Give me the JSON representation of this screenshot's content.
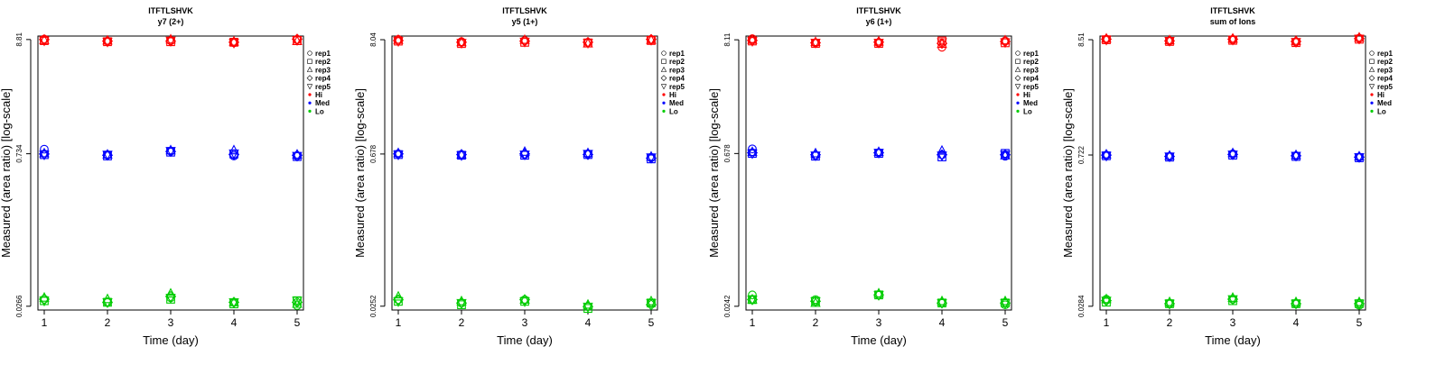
{
  "chart_data": [
    {
      "type": "scatter",
      "title": "ITFTLSHVK",
      "subtitle": "y7 (2+)",
      "xlabel": "Time (day)",
      "ylabel": "Measured (area ratio) [log-scale]",
      "x_ticks": [
        "1",
        "2",
        "3",
        "4",
        "5"
      ],
      "y_ticks": [
        "0.0266",
        "0.734",
        "8.81"
      ],
      "y_scale": "log",
      "xlim": [
        0.9,
        5.1
      ],
      "ylim": [
        0.0245,
        9.5
      ],
      "legend": [
        "rep1",
        "rep2",
        "rep3",
        "rep4",
        "rep5",
        "Hi",
        "Med",
        "Lo"
      ],
      "legend_position": "right",
      "series": [
        {
          "name": "Hi",
          "color": "#ff0000",
          "points": [
            {
              "x": 1,
              "y": [
                8.9,
                8.6,
                8.7,
                8.8,
                8.6
              ]
            },
            {
              "x": 2,
              "y": [
                8.5,
                8.4,
                8.6,
                8.5,
                8.4
              ]
            },
            {
              "x": 3,
              "y": [
                8.6,
                8.4,
                8.8,
                8.5,
                8.6
              ]
            },
            {
              "x": 4,
              "y": [
                8.2,
                8.3,
                8.4,
                8.3,
                8.2
              ]
            },
            {
              "x": 5,
              "y": [
                8.8,
                8.6,
                8.5,
                8.9,
                8.7
              ]
            }
          ]
        },
        {
          "name": "Med",
          "color": "#0000ff",
          "points": [
            {
              "x": 1,
              "y": [
                0.81,
                0.72,
                0.74,
                0.73,
                0.72
              ]
            },
            {
              "x": 2,
              "y": [
                0.72,
                0.7,
                0.72,
                0.71,
                0.72
              ]
            },
            {
              "x": 3,
              "y": [
                0.78,
                0.76,
                0.79,
                0.77,
                0.78
              ]
            },
            {
              "x": 4,
              "y": [
                0.7,
                0.73,
                0.79,
                0.72,
                0.74
              ]
            },
            {
              "x": 5,
              "y": [
                0.7,
                0.69,
                0.72,
                0.71,
                0.7
              ]
            }
          ]
        },
        {
          "name": "Lo",
          "color": "#00cc00",
          "points": [
            {
              "x": 1,
              "y": [
                0.031,
                0.03,
                0.032,
                0.031,
                0.03
              ]
            },
            {
              "x": 2,
              "y": [
                0.029,
                0.029,
                0.031,
                0.029,
                0.029
              ]
            },
            {
              "x": 3,
              "y": [
                0.032,
                0.031,
                0.035,
                0.033,
                0.032
              ]
            },
            {
              "x": 4,
              "y": [
                0.029,
                0.028,
                0.029,
                0.029,
                0.029
              ]
            },
            {
              "x": 5,
              "y": [
                0.027,
                0.03,
                0.028,
                0.029,
                0.03
              ]
            }
          ]
        }
      ]
    },
    {
      "type": "scatter",
      "title": "ITFTLSHVK",
      "subtitle": "y5 (1+)",
      "xlabel": "Time (day)",
      "ylabel": "Measured (area ratio) [log-scale]",
      "x_ticks": [
        "1",
        "2",
        "3",
        "4",
        "5"
      ],
      "y_ticks": [
        "0.0252",
        "0.678",
        "8.04"
      ],
      "y_scale": "log",
      "xlim": [
        0.9,
        5.1
      ],
      "ylim": [
        0.0232,
        8.7
      ],
      "legend": [
        "rep1",
        "rep2",
        "rep3",
        "rep4",
        "rep5",
        "Hi",
        "Med",
        "Lo"
      ],
      "legend_position": "right",
      "series": [
        {
          "name": "Hi",
          "color": "#ff0000",
          "points": [
            {
              "x": 1,
              "y": [
                8.1,
                7.8,
                8.0,
                7.9,
                7.8
              ]
            },
            {
              "x": 2,
              "y": [
                7.7,
                7.4,
                7.6,
                7.6,
                7.5
              ]
            },
            {
              "x": 3,
              "y": [
                7.9,
                7.6,
                8.0,
                7.8,
                7.7
              ]
            },
            {
              "x": 4,
              "y": [
                7.6,
                7.5,
                7.4,
                7.6,
                7.5
              ]
            },
            {
              "x": 5,
              "y": [
                8.1,
                7.9,
                8.0,
                8.1,
                8.0
              ]
            }
          ]
        },
        {
          "name": "Med",
          "color": "#0000ff",
          "points": [
            {
              "x": 1,
              "y": [
                0.68,
                0.67,
                0.69,
                0.68,
                0.67
              ]
            },
            {
              "x": 2,
              "y": [
                0.67,
                0.66,
                0.67,
                0.67,
                0.66
              ]
            },
            {
              "x": 3,
              "y": [
                0.67,
                0.66,
                0.71,
                0.68,
                0.67
              ]
            },
            {
              "x": 4,
              "y": [
                0.68,
                0.67,
                0.69,
                0.67,
                0.68
              ]
            },
            {
              "x": 5,
              "y": [
                0.63,
                0.61,
                0.64,
                0.62,
                0.63
              ]
            }
          ]
        },
        {
          "name": "Lo",
          "color": "#00cc00",
          "points": [
            {
              "x": 1,
              "y": [
                0.029,
                0.028,
                0.031,
                0.029,
                0.028
              ]
            },
            {
              "x": 2,
              "y": [
                0.027,
                0.026,
                0.028,
                0.027,
                0.027
              ]
            },
            {
              "x": 3,
              "y": [
                0.029,
                0.028,
                0.029,
                0.029,
                0.028
              ]
            },
            {
              "x": 4,
              "y": [
                0.025,
                0.024,
                0.026,
                0.025,
                0.025
              ]
            },
            {
              "x": 5,
              "y": [
                0.027,
                0.027,
                0.028,
                0.026,
                0.027
              ]
            }
          ]
        }
      ]
    },
    {
      "type": "scatter",
      "title": "ITFTLSHVK",
      "subtitle": "y6 (1+)",
      "xlabel": "Time (day)",
      "ylabel": "Measured (area ratio) [log-scale]",
      "x_ticks": [
        "1",
        "2",
        "3",
        "4",
        "5"
      ],
      "y_ticks": [
        "0.0242",
        "0.678",
        "8.11"
      ],
      "y_scale": "log",
      "xlim": [
        0.9,
        5.1
      ],
      "ylim": [
        0.0223,
        8.8
      ],
      "legend": [
        "rep1",
        "rep2",
        "rep3",
        "rep4",
        "rep5",
        "Hi",
        "Med",
        "Lo"
      ],
      "legend_position": "right",
      "series": [
        {
          "name": "Hi",
          "color": "#ff0000",
          "points": [
            {
              "x": 1,
              "y": [
                8.3,
                7.9,
                8.1,
                8.0,
                7.9
              ]
            },
            {
              "x": 2,
              "y": [
                7.6,
                7.5,
                7.7,
                7.6,
                7.6
              ]
            },
            {
              "x": 3,
              "y": [
                7.6,
                7.5,
                7.8,
                7.7,
                7.6
              ]
            },
            {
              "x": 4,
              "y": [
                6.9,
                7.9,
                7.4,
                7.5,
                7.7
              ]
            },
            {
              "x": 5,
              "y": [
                7.9,
                7.6,
                8.0,
                7.8,
                7.7
              ]
            }
          ]
        },
        {
          "name": "Med",
          "color": "#0000ff",
          "points": [
            {
              "x": 1,
              "y": [
                0.75,
                0.68,
                0.7,
                0.69,
                0.68
              ]
            },
            {
              "x": 2,
              "y": [
                0.65,
                0.64,
                0.68,
                0.66,
                0.65
              ]
            },
            {
              "x": 3,
              "y": [
                0.69,
                0.68,
                0.7,
                0.69,
                0.69
              ]
            },
            {
              "x": 4,
              "y": [
                0.66,
                0.63,
                0.72,
                0.66,
                0.65
              ]
            },
            {
              "x": 5,
              "y": [
                0.64,
                0.68,
                0.65,
                0.66,
                0.66
              ]
            }
          ]
        },
        {
          "name": "Lo",
          "color": "#00cc00",
          "points": [
            {
              "x": 1,
              "y": [
                0.031,
                0.028,
                0.028,
                0.028,
                0.028
              ]
            },
            {
              "x": 2,
              "y": [
                0.028,
                0.027,
                0.026,
                0.027,
                0.027
              ]
            },
            {
              "x": 3,
              "y": [
                0.031,
                0.031,
                0.032,
                0.031,
                0.031
              ]
            },
            {
              "x": 4,
              "y": [
                0.026,
                0.026,
                0.027,
                0.026,
                0.026
              ]
            },
            {
              "x": 5,
              "y": [
                0.025,
                0.026,
                0.027,
                0.026,
                0.026
              ]
            }
          ]
        }
      ]
    },
    {
      "type": "scatter",
      "title": "ITFTLSHVK",
      "subtitle": "sum of Ions",
      "xlabel": "Time (day)",
      "ylabel": "Measured (area ratio) [log-scale]",
      "x_ticks": [
        "1",
        "2",
        "3",
        "4",
        "5"
      ],
      "y_ticks": [
        "0.0284",
        "0.722",
        "8.51"
      ],
      "y_scale": "log",
      "xlim": [
        0.9,
        5.1
      ],
      "ylim": [
        0.0262,
        9.2
      ],
      "legend": [
        "rep1",
        "rep2",
        "rep3",
        "rep4",
        "rep5",
        "Hi",
        "Med",
        "Lo"
      ],
      "legend_position": "right",
      "series": [
        {
          "name": "Hi",
          "color": "#ff0000",
          "points": [
            {
              "x": 1,
              "y": [
                8.6,
                8.5,
                8.7,
                8.6,
                8.5
              ]
            },
            {
              "x": 2,
              "y": [
                8.3,
                8.2,
                8.4,
                8.3,
                8.3
              ]
            },
            {
              "x": 3,
              "y": [
                8.5,
                8.4,
                8.7,
                8.6,
                8.5
              ]
            },
            {
              "x": 4,
              "y": [
                8.1,
                8.0,
                8.3,
                8.2,
                8.1
              ]
            },
            {
              "x": 5,
              "y": [
                8.8,
                8.6,
                8.9,
                8.7,
                8.7
              ]
            }
          ]
        },
        {
          "name": "Med",
          "color": "#0000ff",
          "points": [
            {
              "x": 1,
              "y": [
                0.72,
                0.71,
                0.73,
                0.72,
                0.71
              ]
            },
            {
              "x": 2,
              "y": [
                0.7,
                0.69,
                0.71,
                0.7,
                0.7
              ]
            },
            {
              "x": 3,
              "y": [
                0.74,
                0.72,
                0.75,
                0.73,
                0.73
              ]
            },
            {
              "x": 4,
              "y": [
                0.71,
                0.7,
                0.72,
                0.71,
                0.71
              ]
            },
            {
              "x": 5,
              "y": [
                0.69,
                0.68,
                0.7,
                0.69,
                0.69
              ]
            }
          ]
        },
        {
          "name": "Lo",
          "color": "#00cc00",
          "points": [
            {
              "x": 1,
              "y": [
                0.033,
                0.031,
                0.033,
                0.032,
                0.032
              ]
            },
            {
              "x": 2,
              "y": [
                0.03,
                0.03,
                0.031,
                0.03,
                0.03
              ]
            },
            {
              "x": 3,
              "y": [
                0.033,
                0.032,
                0.034,
                0.033,
                0.033
              ]
            },
            {
              "x": 4,
              "y": [
                0.03,
                0.03,
                0.031,
                0.03,
                0.03
              ]
            },
            {
              "x": 5,
              "y": [
                0.029,
                0.03,
                0.031,
                0.03,
                0.03
              ]
            }
          ]
        }
      ]
    }
  ]
}
